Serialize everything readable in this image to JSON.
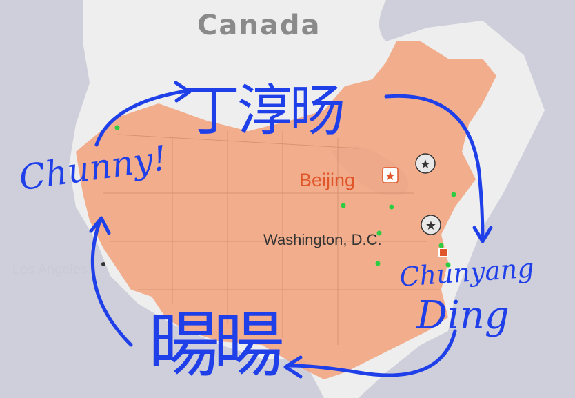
{
  "map": {
    "country_label": "Canada",
    "capital_a": "Beijing",
    "capital_b": "Washington, D.C.",
    "city_faded": "Los Angeles",
    "colors": {
      "background": "#c8c8d6",
      "ocean": "#cfcfdc",
      "land": "#eeeeee",
      "overlay": "#f2a27a",
      "capital_red": "#e0552a",
      "handwriting": "#1f3fe8",
      "city_dot": "#2ecc40"
    }
  },
  "handwriting": {
    "top_chinese": "丁淳旸",
    "bottom_chinese": "暘暘",
    "nickname": "Chunny!",
    "name_line1": "Chunyang",
    "name_line2": "Ding"
  }
}
